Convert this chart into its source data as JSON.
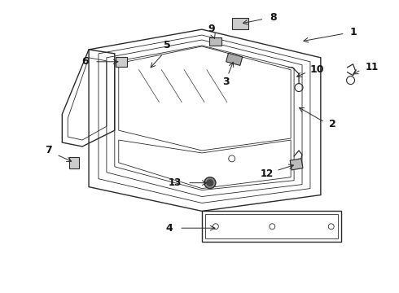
{
  "bg_color": "#ffffff",
  "line_color": "#2a2a2a",
  "label_color": "#111111",
  "fig_width": 4.9,
  "fig_height": 3.6,
  "dpi": 100
}
